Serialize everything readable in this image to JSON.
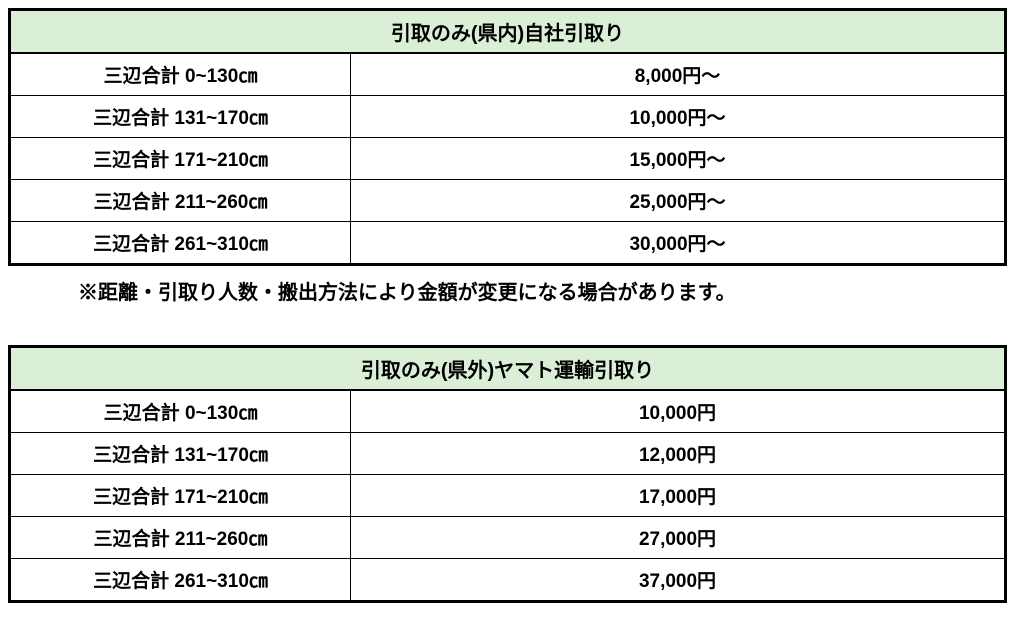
{
  "tables": [
    {
      "title": "引取のみ(県内)自社引取り",
      "header_bg": "#dbeed6",
      "rows": [
        {
          "size": "三辺合計 0~130㎝",
          "price": "8,000円～"
        },
        {
          "size": "三辺合計 131~170㎝",
          "price": "10,000円～"
        },
        {
          "size": "三辺合計 171~210㎝",
          "price": "15,000円～"
        },
        {
          "size": "三辺合計 211~260㎝",
          "price": "25,000円～"
        },
        {
          "size": "三辺合計 261~310㎝",
          "price": "30,000円～"
        }
      ],
      "note": "※距離・引取り人数・搬出方法により金額が変更になる場合があります。"
    },
    {
      "title": "引取のみ(県外)ヤマト運輸引取り",
      "header_bg": "#dbeed6",
      "rows": [
        {
          "size": "三辺合計 0~130㎝",
          "price": "10,000円"
        },
        {
          "size": "三辺合計 131~170㎝",
          "price": "12,000円"
        },
        {
          "size": "三辺合計 171~210㎝",
          "price": "17,000円"
        },
        {
          "size": "三辺合計 211~260㎝",
          "price": "27,000円"
        },
        {
          "size": "三辺合計 261~310㎝",
          "price": "37,000円"
        }
      ],
      "note": ""
    }
  ]
}
